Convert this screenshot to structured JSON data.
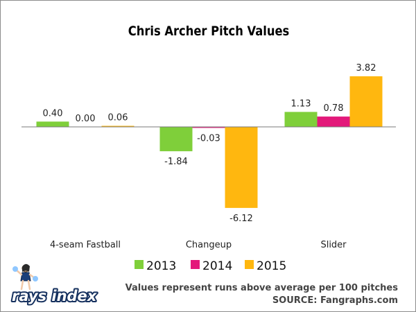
{
  "chart_data": {
    "type": "bar",
    "title": "Chris Archer Pitch Values",
    "categories": [
      "4-seam Fastball",
      "Changeup",
      "Slider"
    ],
    "series": [
      {
        "name": "2013",
        "color": "#7fcf3a",
        "values": [
          0.4,
          -1.84,
          1.13
        ],
        "labels": [
          "0.40",
          "-1.84",
          "1.13"
        ]
      },
      {
        "name": "2014",
        "color": "#e3197a",
        "values": [
          0.0,
          -0.03,
          0.78
        ],
        "labels": [
          "0.00",
          "-0.03",
          "0.78"
        ]
      },
      {
        "name": "2015",
        "color": "#ffb70f",
        "values": [
          0.06,
          -6.12,
          3.82
        ],
        "labels": [
          "0.06",
          "-6.12",
          "3.82"
        ]
      }
    ],
    "xlabel": "",
    "ylabel": "",
    "ylim": [
      -7,
      4.5
    ],
    "grid": false,
    "legend_position": "bottom"
  },
  "notes": {
    "line1": "Values represent runs above average per 100 pitches",
    "line2": "SOURCE: Fangraphs.com"
  },
  "logo": {
    "text": "rays index",
    "icon": "cheerleader-mascot-icon"
  }
}
